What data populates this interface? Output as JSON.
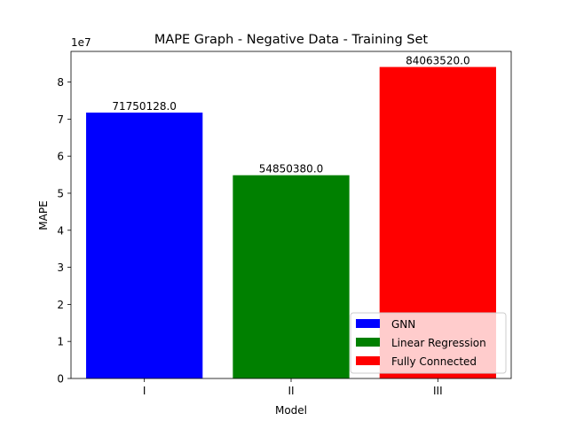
{
  "chart_data": {
    "type": "bar",
    "title": "MAPE Graph - Negative Data - Training Set",
    "xlabel": "Model",
    "ylabel": "MAPE",
    "y_multiplier_label": "1e7",
    "categories": [
      "I",
      "II",
      "III"
    ],
    "values": [
      71750128.0,
      54850380.0,
      84063520.0
    ],
    "value_labels": [
      "71750128.0",
      "54850380.0",
      "84063520.0"
    ],
    "colors": [
      "#0000ff",
      "#008000",
      "#ff0000"
    ],
    "ylim": [
      0,
      88266000
    ],
    "yticks": [
      0,
      10000000,
      20000000,
      30000000,
      40000000,
      50000000,
      60000000,
      70000000,
      80000000
    ],
    "ytick_labels": [
      "0",
      "1",
      "2",
      "3",
      "4",
      "5",
      "6",
      "7",
      "8"
    ],
    "grid": false,
    "legend": {
      "placement": "lower-right",
      "entries": [
        {
          "label": "GNN",
          "color": "#0000ff"
        },
        {
          "label": "Linear Regression",
          "color": "#008000"
        },
        {
          "label": "Fully Connected",
          "color": "#ff0000"
        }
      ]
    }
  }
}
